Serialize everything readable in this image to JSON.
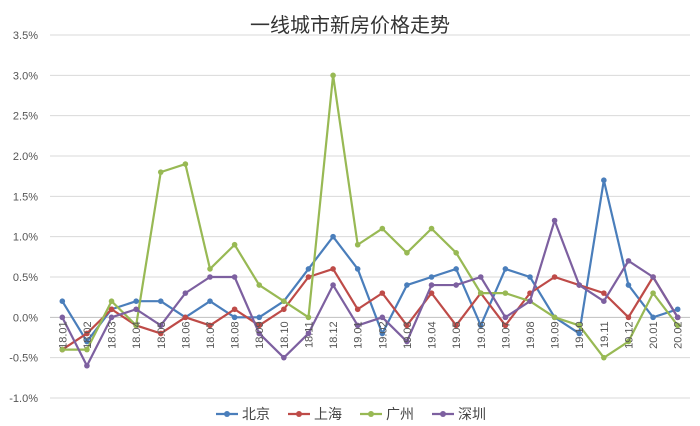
{
  "chart_data": {
    "type": "line",
    "title": "一线城市新房价格走势",
    "xlabel": "",
    "ylabel": "",
    "ylim": [
      -1.0,
      3.5
    ],
    "yticks": [
      "-1.0%",
      "-0.5%",
      "0.0%",
      "0.5%",
      "1.0%",
      "1.5%",
      "2.0%",
      "2.5%",
      "3.0%",
      "3.5%"
    ],
    "ytick_values": [
      -1.0,
      -0.5,
      0.0,
      0.5,
      1.0,
      1.5,
      2.0,
      2.5,
      3.0,
      3.5
    ],
    "grid": true,
    "legend": "bottom",
    "categories": [
      "18.01",
      "18.02",
      "18.03",
      "18.04",
      "18.05",
      "18.06",
      "18.07",
      "18.08",
      "18.09",
      "18.10",
      "18.11",
      "18.12",
      "19.01",
      "19.02",
      "19.03",
      "19.04",
      "19.05",
      "19.06",
      "19.07",
      "19.08",
      "19.09",
      "19.10",
      "19.11",
      "19.12",
      "20.01",
      "20.02"
    ],
    "series": [
      {
        "name": "北京",
        "color": "#4a7ebb",
        "values": [
          0.2,
          -0.3,
          0.1,
          0.2,
          0.2,
          0.0,
          0.2,
          0.0,
          0.0,
          0.2,
          0.6,
          1.0,
          0.6,
          -0.2,
          0.4,
          0.5,
          0.6,
          -0.1,
          0.6,
          0.5,
          0.0,
          -0.2,
          1.7,
          0.4,
          0.0,
          0.1
        ]
      },
      {
        "name": "上海",
        "color": "#be4b48",
        "values": [
          -0.4,
          -0.2,
          0.1,
          -0.1,
          -0.2,
          0.0,
          -0.1,
          0.1,
          -0.1,
          0.1,
          0.5,
          0.6,
          0.1,
          0.3,
          -0.1,
          0.3,
          -0.1,
          0.3,
          -0.1,
          0.3,
          0.5,
          0.4,
          0.3,
          0.0,
          0.5,
          0.0
        ]
      },
      {
        "name": "广州",
        "color": "#98b954",
        "values": [
          -0.4,
          -0.4,
          0.2,
          -0.1,
          1.8,
          1.9,
          0.6,
          0.9,
          0.4,
          0.2,
          0.0,
          3.0,
          0.9,
          1.1,
          0.8,
          1.1,
          0.8,
          0.3,
          0.3,
          0.2,
          0.0,
          -0.1,
          -0.5,
          -0.3,
          0.3,
          -0.1
        ]
      },
      {
        "name": "深圳",
        "color": "#7d60a0",
        "values": [
          0.0,
          -0.6,
          0.0,
          0.1,
          -0.1,
          0.3,
          0.5,
          0.5,
          -0.2,
          -0.5,
          -0.2,
          0.4,
          -0.1,
          0.0,
          -0.3,
          0.4,
          0.4,
          0.5,
          0.0,
          0.2,
          1.2,
          0.4,
          0.2,
          0.7,
          0.5,
          0.0
        ]
      }
    ]
  }
}
